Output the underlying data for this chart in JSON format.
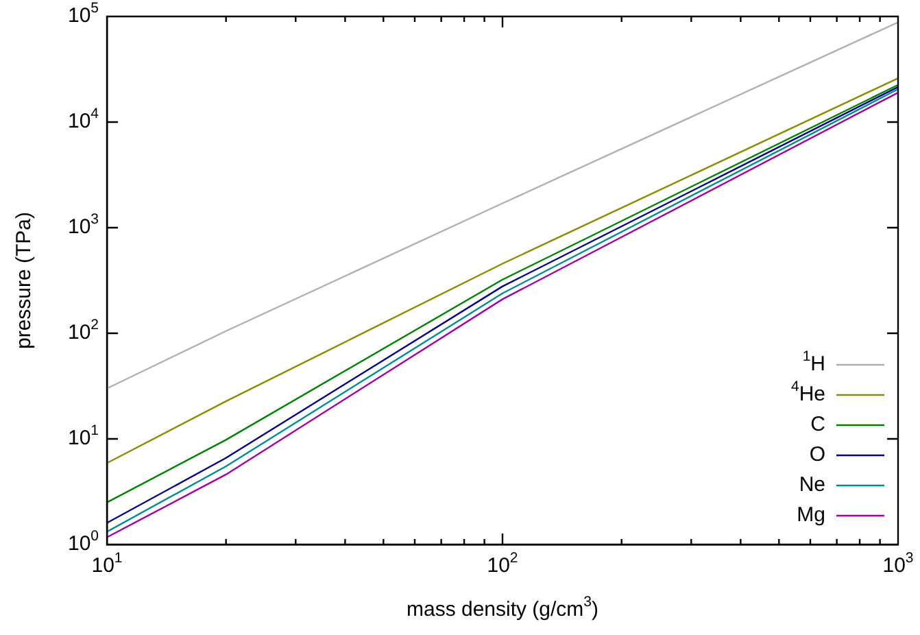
{
  "chart_data": {
    "type": "line",
    "xlabel": "mass density (g/cm$^{3}$)",
    "ylabel": "pressure (TPa)",
    "log": "xy",
    "grid": false,
    "legend": "bottom right",
    "marker": "none",
    "line_style": "solid",
    "x": [
      10,
      20,
      100,
      1000
    ],
    "xlim": [
      10,
      1000
    ],
    "xticks": [
      {
        "value": 10,
        "label": "10$^{1}$"
      },
      {
        "value": 20,
        "label": null
      },
      {
        "value": 30,
        "label": null
      },
      {
        "value": 40,
        "label": null
      },
      {
        "value": 50,
        "label": null
      },
      {
        "value": 60,
        "label": null
      },
      {
        "value": 70,
        "label": null
      },
      {
        "value": 80,
        "label": null
      },
      {
        "value": 90,
        "label": null
      },
      {
        "value": 100,
        "label": "10$^{2}$"
      },
      {
        "value": 200,
        "label": null
      },
      {
        "value": 300,
        "label": null
      },
      {
        "value": 400,
        "label": null
      },
      {
        "value": 500,
        "label": null
      },
      {
        "value": 600,
        "label": null
      },
      {
        "value": 700,
        "label": null
      },
      {
        "value": 800,
        "label": null
      },
      {
        "value": 900,
        "label": null
      },
      {
        "value": 1000,
        "label": "10$^{3}$"
      }
    ],
    "ylim": [
      1,
      100000
    ],
    "yticks": [
      {
        "value": 1,
        "label": "10$^{0}$"
      },
      {
        "value": 10,
        "label": "10$^{1}$"
      },
      {
        "value": 100,
        "label": "10$^{2}$"
      },
      {
        "value": 1000,
        "label": "10$^{3}$"
      },
      {
        "value": 10000,
        "label": "10$^{4}$"
      },
      {
        "value": 100000,
        "label": "10$^{5}$"
      }
    ],
    "series": [
      {
        "name": "$^{1}$H",
        "color": "#b0b0b0",
        "values": [
          30,
          105,
          1700,
          88000
        ]
      },
      {
        "name": "$^{4}$He",
        "color": "#8b8b00",
        "values": [
          5.9,
          22.7,
          456,
          26000
        ]
      },
      {
        "name": "C",
        "color": "#008000",
        "values": [
          2.5,
          9.8,
          322,
          22500
        ]
      },
      {
        "name": "O",
        "color": "#000080",
        "values": [
          1.6,
          6.6,
          278,
          21500
        ]
      },
      {
        "name": "Ne",
        "color": "#008b8b",
        "values": [
          1.32,
          5.5,
          239,
          20500
        ]
      },
      {
        "name": "Mg",
        "color": "#a000a0",
        "values": [
          1.17,
          4.6,
          210,
          19000
        ]
      }
    ]
  }
}
